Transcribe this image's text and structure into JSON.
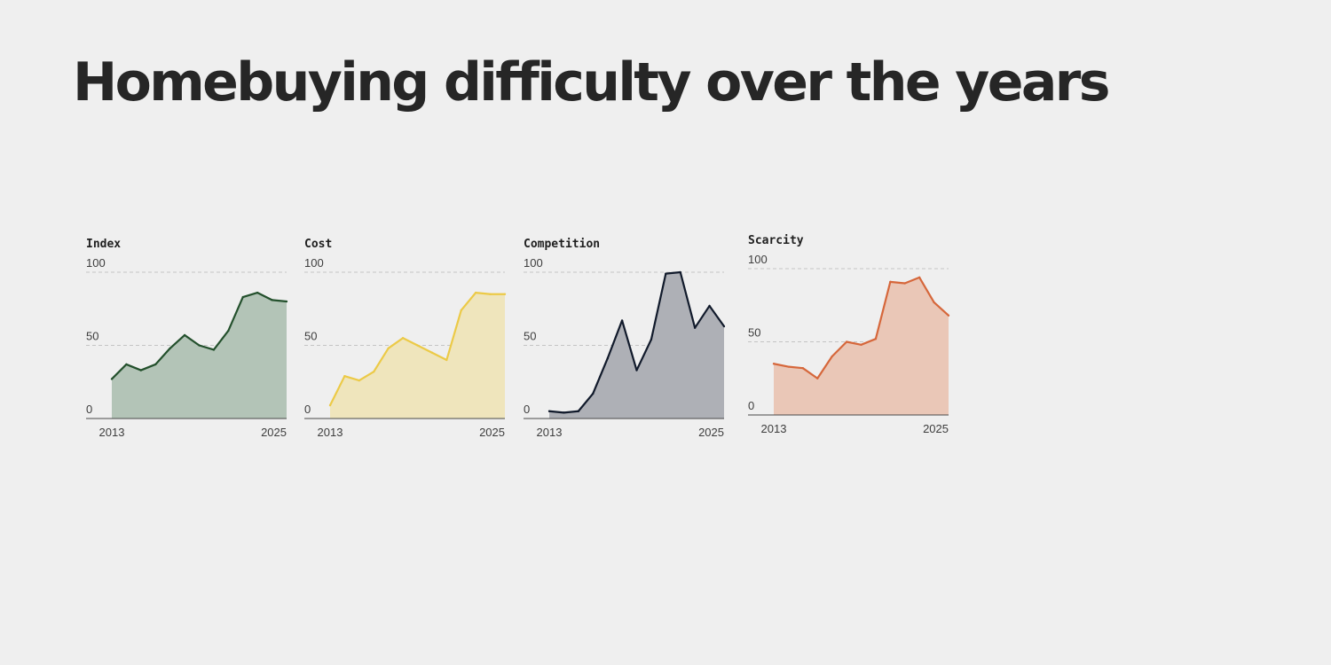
{
  "title": "Homebuying difficulty over the years",
  "chart_data": [
    {
      "type": "area",
      "title": "Index",
      "color": "#23502c",
      "fill": "#b3c4b7",
      "ylim": [
        0,
        100
      ],
      "yticks": [
        0,
        50,
        100
      ],
      "x_start_label": "2013",
      "x_end_label": "2025",
      "x": [
        2013.0,
        2014.0,
        2015.0,
        2016.0,
        2017.0,
        2018.0,
        2019.0,
        2020.0,
        2021.0,
        2022.0,
        2023.0,
        2024.0,
        2025.0
      ],
      "values": [
        27,
        37,
        33,
        37,
        48,
        57,
        50,
        47,
        60,
        83,
        86,
        81,
        80
      ]
    },
    {
      "type": "area",
      "title": "Cost",
      "color": "#ecca47",
      "fill": "#efe5bc",
      "ylim": [
        0,
        100
      ],
      "yticks": [
        0,
        50,
        100
      ],
      "x_start_label": "2013",
      "x_end_label": "2025",
      "x": [
        2013.0,
        2014.0,
        2015.0,
        2016.0,
        2017.0,
        2018.0,
        2019.0,
        2020.0,
        2021.0,
        2022.0,
        2023.0,
        2024.0,
        2025.0
      ],
      "values": [
        9,
        29,
        26,
        32,
        48,
        55,
        50,
        45,
        40,
        74,
        86,
        85,
        85
      ]
    },
    {
      "type": "area",
      "title": "Competition",
      "color": "#111a2b",
      "fill": "#aeb0b6",
      "ylim": [
        0,
        100
      ],
      "yticks": [
        0,
        50,
        100
      ],
      "x_start_label": "2013",
      "x_end_label": "2025",
      "x": [
        2013.0,
        2014.0,
        2015.0,
        2016.0,
        2017.0,
        2018.0,
        2019.0,
        2020.0,
        2021.0,
        2022.0,
        2023.0,
        2024.0,
        2025.0
      ],
      "values": [
        5,
        4,
        5,
        17,
        41,
        67,
        33,
        54,
        99,
        100,
        62,
        77,
        63
      ]
    },
    {
      "type": "area",
      "title": "Scarcity",
      "color": "#d6673b",
      "fill": "#eac7b7",
      "ylim": [
        0,
        100
      ],
      "yticks": [
        0,
        50,
        100
      ],
      "x_start_label": "2013",
      "x_end_label": "2025",
      "x": [
        2013.0,
        2014.0,
        2015.0,
        2016.0,
        2017.0,
        2018.0,
        2019.0,
        2020.0,
        2021.0,
        2022.0,
        2023.0,
        2024.0,
        2025.0
      ],
      "values": [
        35,
        33,
        32,
        25,
        40,
        50,
        48,
        52,
        91,
        90,
        94,
        77,
        68
      ]
    }
  ]
}
